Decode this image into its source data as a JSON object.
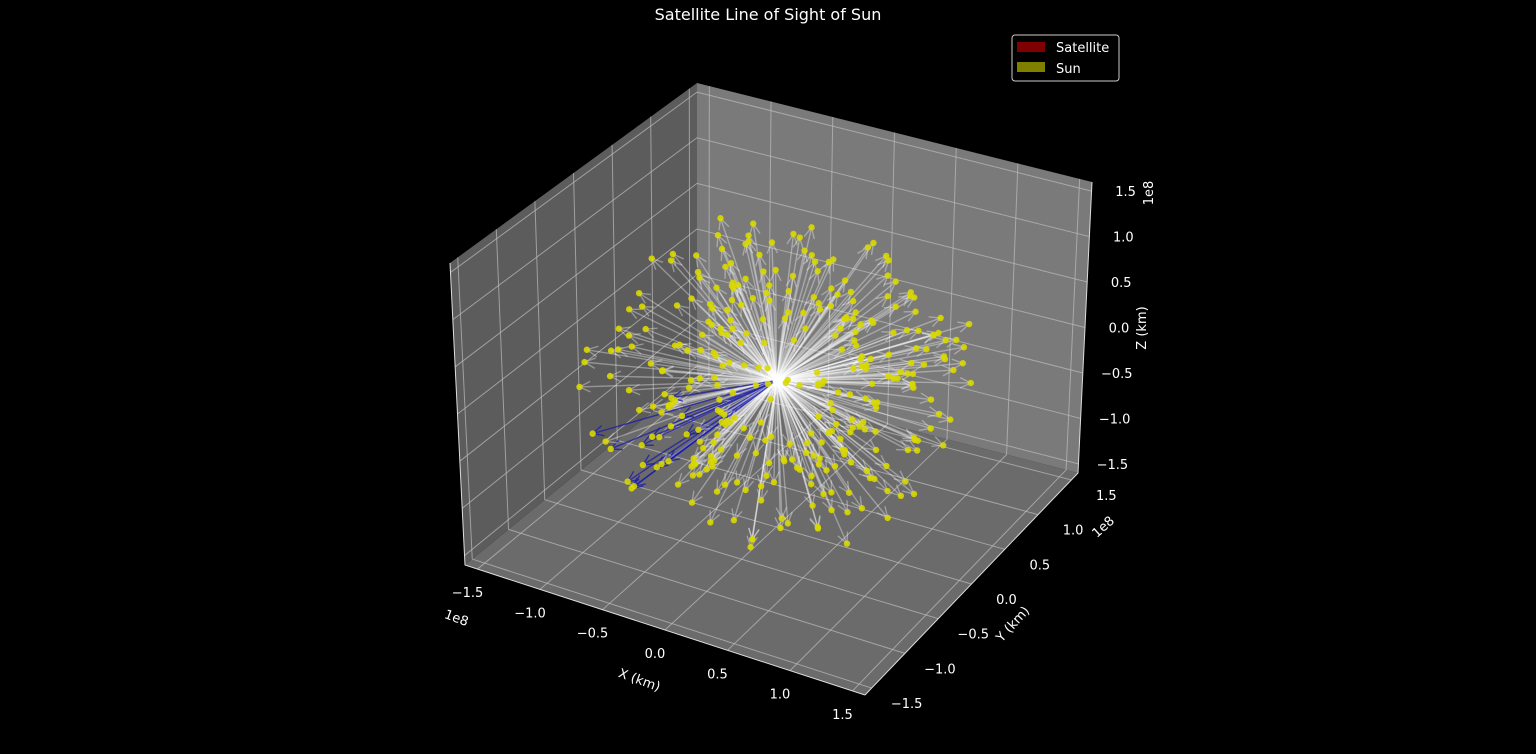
{
  "chart_data": {
    "type": "scatter",
    "title": "Satellite Line of Sight of Sun",
    "xlabel": "X (km)",
    "ylabel": "Y (km)",
    "zlabel": "Z (km)",
    "axis_offset_label": "1e8",
    "xlim": [
      -160000000.0,
      160000000.0
    ],
    "ylim": [
      -160000000.0,
      160000000.0
    ],
    "zlim": [
      -160000000.0,
      160000000.0
    ],
    "x_ticks": [
      "−1.5",
      "−1.0",
      "−0.5",
      "0.0",
      "0.5",
      "1.0",
      "1.5"
    ],
    "y_ticks": [
      "−1.5",
      "−1.0",
      "−0.5",
      "0.0",
      "0.5",
      "1.0",
      "1.5"
    ],
    "z_ticks": [
      "−1.5",
      "−1.0",
      "−0.5",
      "0.0",
      "0.5",
      "1.0",
      "1.5"
    ],
    "tick_values": [
      -150000000.0,
      -100000000.0,
      -50000000.0,
      0,
      50000000.0,
      100000000.0,
      150000000.0
    ],
    "grid": true,
    "legend_position": "top-right",
    "legend": [
      {
        "name": "Satellite",
        "color": "#7f0000"
      },
      {
        "name": "Sun",
        "color": "#7f7f00"
      }
    ],
    "colors": {
      "background": "#000000",
      "pane": "#7a7a7a",
      "sun_point": "#d8d800",
      "sight_line": "#ffffff",
      "blocked_line": "#1a1aaa"
    },
    "origin": [
      0,
      0,
      0
    ],
    "sample_count": 330,
    "random_seed": 7,
    "blocked_direction": [
      -0.55,
      -0.75,
      -0.35
    ],
    "blocked_cone_cos": 0.93
  }
}
